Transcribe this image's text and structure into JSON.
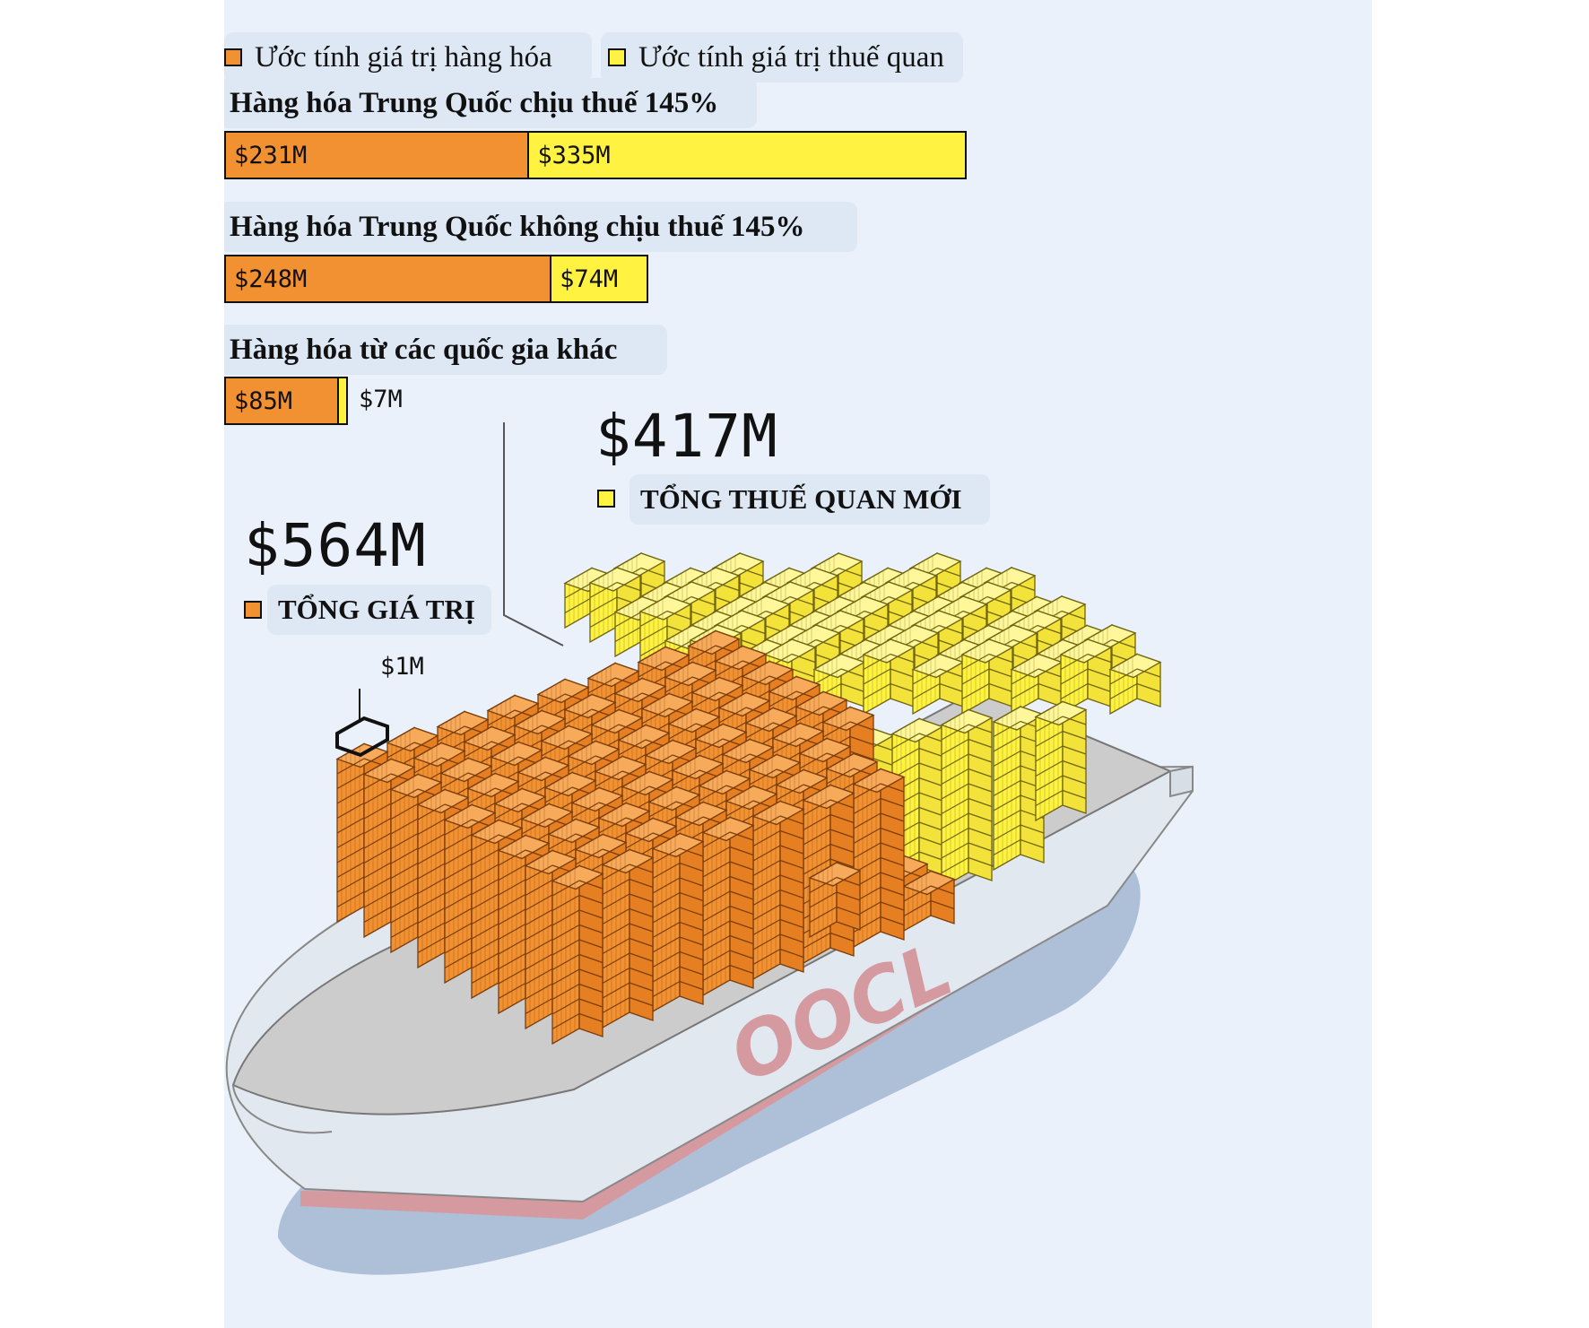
{
  "legend": [
    {
      "label": "Ước tính giá trị hàng hóa",
      "color": "#f29131"
    },
    {
      "label": "Ước tính giá trị thuế quan",
      "color": "#fff240"
    }
  ],
  "chart_data": {
    "type": "bar",
    "orientation": "horizontal",
    "stacked": true,
    "categories": [
      "Hàng hóa Trung Quốc chịu thuế 145%",
      "Hàng hóa Trung Quốc không chịu thuế 145%",
      "Hàng hóa từ các quốc gia khác"
    ],
    "series": [
      {
        "name": "Ước tính giá trị hàng hóa",
        "values": [
          231,
          248,
          85
        ],
        "labels": [
          "$231M",
          "$248M",
          "$85M"
        ],
        "color": "#f29131"
      },
      {
        "name": "Ước tính giá trị thuế quan",
        "values": [
          335,
          74,
          7
        ],
        "labels": [
          "$335M",
          "$74M",
          "$7M"
        ],
        "color": "#fff240"
      }
    ]
  },
  "totals": {
    "value": {
      "amount": "$564M",
      "label": "TỔNG GIÁ TRỊ"
    },
    "tariff": {
      "amount": "$417M",
      "label": "TỔNG THUẾ  QUAN MỚI"
    }
  },
  "unit_label": "$1M",
  "ship_logo": "OOCL",
  "colors": {
    "background": "#eaf1fb",
    "orange": "#f29131",
    "yellow": "#fff240",
    "hull": "#e2e8ef",
    "deck": "#cccccc",
    "hull_stripe": "#d49aa0",
    "shadow": "#aebfd8"
  }
}
